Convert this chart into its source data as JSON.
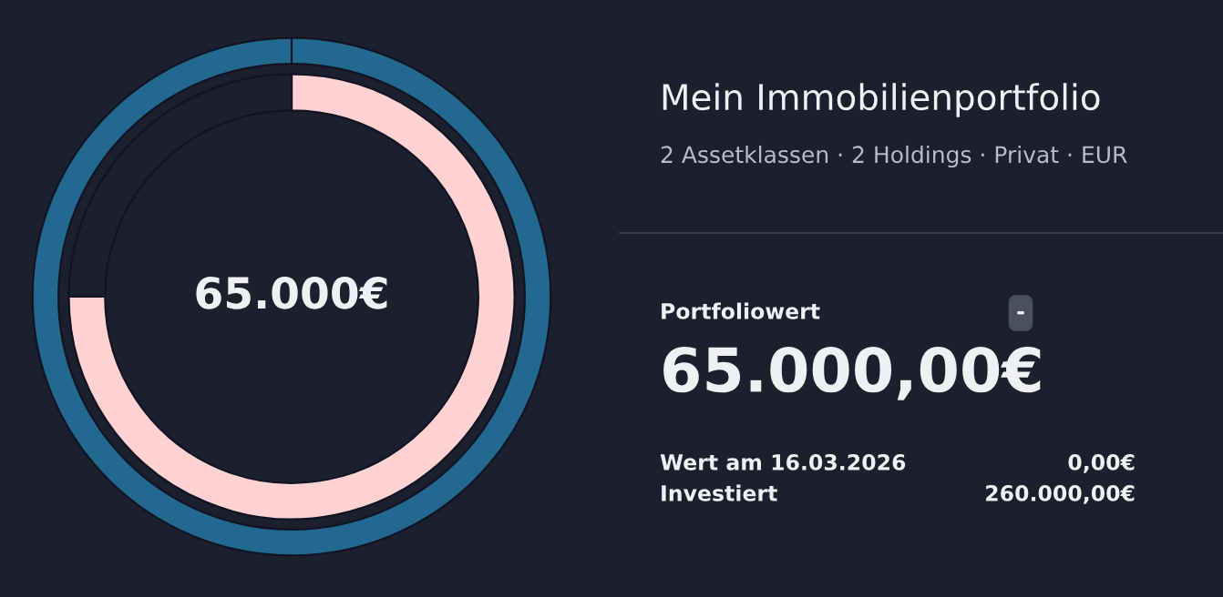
{
  "chart_data": [
    {
      "type": "donut",
      "categories": [
        null,
        null
      ],
      "series": [
        {
          "values": [
            75,
            25
          ],
          "colors": [
            "#ffd1d1",
            "#1b1f2e"
          ]
        },
        {
          "values": [
            100,
            0
          ],
          "colors": [
            "#23698f",
            "#23698f"
          ]
        }
      ],
      "annotations": [
        "65.000€"
      ]
    },
    {
      "type": "other",
      "title": "Mein Immobilienportfolio",
      "subtitle": "2 Assetklassen · 2 Holdings · Privat · EUR",
      "annotations": [
        "Portfoliowert",
        "-",
        "65.000,00€",
        "Wert am 16.03.2026",
        "0,00€",
        "Investiert",
        "260.000,00€"
      ]
    }
  ]
}
